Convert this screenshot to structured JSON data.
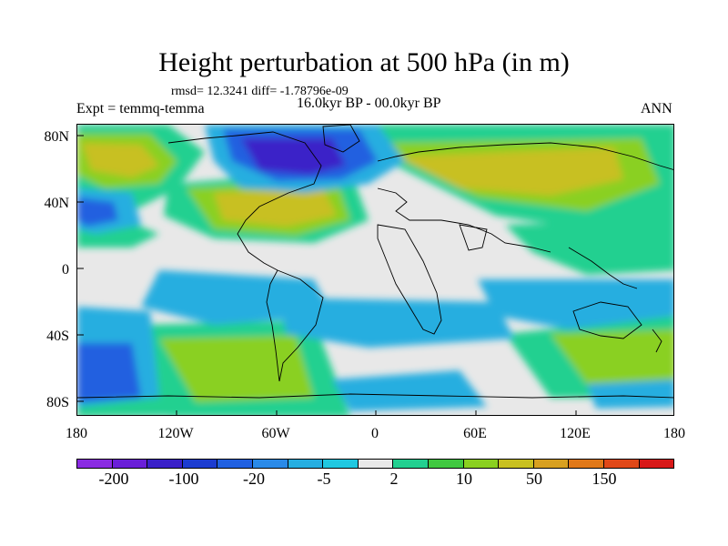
{
  "title": "Height perturbation at 500 hPa (in m)",
  "stats": "rmsd= 12.3241 diff= -1.78796e-09",
  "period": "16.0kyr BP - 00.0kyr BP",
  "experiment": "Expt = temmq-temma",
  "season": "ANN",
  "lat_labels": [
    "80N",
    "40N",
    "0",
    "40S",
    "80S"
  ],
  "lon_labels": [
    "180",
    "120W",
    "60W",
    "0",
    "60E",
    "120E",
    "180"
  ],
  "colorbar": {
    "colors": [
      "#8a2be2",
      "#6a1fd8",
      "#3a20c8",
      "#1c3cd0",
      "#2060e0",
      "#2a8ae8",
      "#26aee0",
      "#20c8e0",
      "#e8e8e8",
      "#22d090",
      "#40c840",
      "#8ad020",
      "#c8c020",
      "#d8a020",
      "#e07818",
      "#e04818",
      "#d81818"
    ],
    "labels": [
      "-200",
      "-100",
      "-20",
      "-5",
      "2",
      "10",
      "50",
      "150"
    ]
  }
}
